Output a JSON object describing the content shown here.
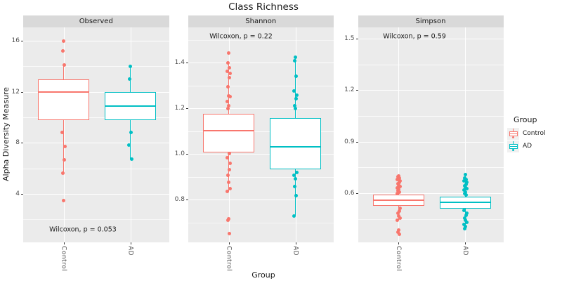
{
  "title": "Class Richness",
  "axes": {
    "y_title": "Alpha Diversity Measure",
    "x_title": "Group"
  },
  "legend": {
    "title": "Group",
    "items": [
      {
        "label": "Control",
        "color": "#F8766D"
      },
      {
        "label": "AD",
        "color": "#00BFC4"
      }
    ]
  },
  "colors": {
    "control": "#F8766D",
    "ad": "#00BFC4",
    "panel_bg": "#EBEBEB",
    "strip_bg": "#D9D9D9",
    "grid": "#FFFFFF",
    "axis_text": "#4D4D4D",
    "title_text": "#1A1A1A"
  },
  "chart_data": [
    {
      "type": "boxplot",
      "facet": "Observed",
      "p_label": "Wilcoxon, p = 0.053",
      "x_categories": [
        "Control",
        "AD"
      ],
      "y_ticks": [
        {
          "label": "16",
          "value": 16
        },
        {
          "label": "12",
          "value": 12
        },
        {
          "label": "8",
          "value": 8
        },
        {
          "label": "4",
          "value": 4
        }
      ],
      "groups": [
        {
          "name": "Control",
          "color": "#F8766D",
          "q1": 9.8,
          "median": 12.0,
          "q3": 13.0,
          "whisker_low": 5.6,
          "whisker_high": 14.0,
          "points": [
            16.0,
            15.2,
            14.1,
            8.8,
            7.7,
            6.65,
            5.6,
            3.5
          ]
        },
        {
          "name": "AD",
          "color": "#00BFC4",
          "q1": 9.8,
          "median": 10.9,
          "q3": 12.0,
          "whisker_low": 6.7,
          "whisker_high": 14.0,
          "points": [
            14.0,
            13.0,
            8.8,
            7.8,
            6.7
          ]
        }
      ]
    },
    {
      "type": "boxplot",
      "facet": "Shannon",
      "p_label": "Wilcoxon, p = 0.22",
      "x_categories": [
        "Control",
        "AD"
      ],
      "y_ticks": [
        {
          "label": "1.4",
          "value": 1.4
        },
        {
          "label": "1.2",
          "value": 1.2
        },
        {
          "label": "1.0",
          "value": 1.0
        },
        {
          "label": "0.8",
          "value": 0.8
        }
      ],
      "groups": [
        {
          "name": "Control",
          "color": "#F8766D",
          "q1": 1.006,
          "median": 1.102,
          "q3": 1.175,
          "whisker_low": 0.834,
          "whisker_high": 1.4,
          "points": [
            1.443,
            1.397,
            1.376,
            1.361,
            1.351,
            1.335,
            1.294,
            1.253,
            1.25,
            1.228,
            1.212,
            1.199,
            1.003,
            0.982,
            0.96,
            0.932,
            0.905,
            0.874,
            0.849,
            0.834,
            0.714,
            0.708,
            0.652
          ]
        },
        {
          "name": "AD",
          "color": "#00BFC4",
          "q1": 0.933,
          "median": 1.031,
          "q3": 1.157,
          "whisker_low": 0.729,
          "whisker_high": 1.422,
          "points": [
            1.422,
            1.407,
            1.341,
            1.274,
            1.258,
            1.243,
            1.212,
            1.197,
            0.92,
            0.905,
            0.892,
            0.858,
            0.818,
            0.729
          ]
        }
      ]
    },
    {
      "type": "boxplot",
      "facet": "Simpson",
      "p_label": "Wilcoxon, p = 0.59",
      "x_categories": [
        "Control",
        "AD"
      ],
      "y_ticks": [
        {
          "label": "1.5",
          "value": 1.5
        },
        {
          "label": "1.2",
          "value": 1.2
        },
        {
          "label": "0.9",
          "value": 0.9
        },
        {
          "label": "0.6",
          "value": 0.6
        }
      ],
      "groups": [
        {
          "name": "Control",
          "color": "#F8766D",
          "q1": 0.526,
          "median": 0.559,
          "q3": 0.592,
          "whisker_low": 0.444,
          "whisker_high": 0.702,
          "points": [
            0.702,
            0.694,
            0.686,
            0.678,
            0.67,
            0.662,
            0.654,
            0.646,
            0.638,
            0.63,
            0.622,
            0.614,
            0.606,
            0.598,
            0.51,
            0.496,
            0.482,
            0.468,
            0.454,
            0.444,
            0.383,
            0.371,
            0.361
          ]
        },
        {
          "name": "AD",
          "color": "#00BFC4",
          "q1": 0.51,
          "median": 0.547,
          "q3": 0.58,
          "whisker_low": 0.416,
          "whisker_high": 0.71,
          "points": [
            0.71,
            0.689,
            0.68,
            0.671,
            0.662,
            0.653,
            0.644,
            0.635,
            0.626,
            0.617,
            0.608,
            0.599,
            0.59,
            0.498,
            0.484,
            0.47,
            0.456,
            0.442,
            0.428,
            0.416,
            0.404,
            0.392
          ]
        }
      ]
    }
  ]
}
